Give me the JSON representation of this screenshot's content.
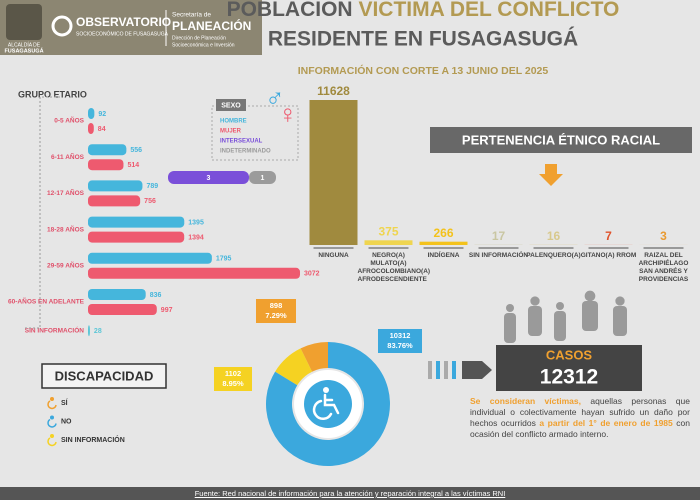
{
  "header": {
    "logo_top": "ALCALDÍA DE",
    "logo_bottom": "FUSAGASUGÁ",
    "observatorio": "OBSERVATORIO",
    "observatorio_sub": "SOCIOECONÓMICO DE FUSAGASUGÁ",
    "secretaria": "Secretaría de",
    "planeacion": "PLANEACIÓN",
    "direccion_1": "Dirección de Planeación",
    "direccion_2": "Socioeconómica e Inversión",
    "title_a": "POBLACIÓN ",
    "title_b": "VÍCTIMA DEL CONFLICTO",
    "title_line2": "RESIDENTE EN FUSAGASUGÁ",
    "subtitle": "INFORMACIÓN CON CORTE A 13 JUNIO DEL 2025"
  },
  "chart_data": [
    {
      "type": "hbar",
      "title": "GRUPO ETARIO",
      "categories": [
        "0-5 AÑOS",
        "6-11 AÑOS",
        "12-17 AÑOS",
        "18-28 AÑOS",
        "29-59 AÑOS",
        "60-AÑOS EN ADELANTE",
        "SIN INFORMACIÓN"
      ],
      "series": [
        {
          "name": "HOMBRE",
          "color": "#45b6dc",
          "values": [
            92,
            556,
            789,
            1395,
            1795,
            836,
            null
          ]
        },
        {
          "name": "MUJER",
          "color": "#ee5a6f",
          "values": [
            84,
            514,
            756,
            1394,
            3072,
            997,
            null
          ]
        },
        {
          "color": "#5cc6d6",
          "values": [
            null,
            null,
            null,
            null,
            null,
            null,
            28
          ]
        }
      ]
    },
    {
      "type": "stacked_bar",
      "title": "SEXO",
      "series": [
        {
          "name": "INTERSEXUAL",
          "color": "#7a4fd9",
          "values": [
            3
          ]
        },
        {
          "name": "INDETERMINADO",
          "color": "#9b9b9b",
          "values": [
            1
          ]
        }
      ]
    },
    {
      "type": "bar",
      "title": "PERTENENCIA ÉTNICO RACIAL",
      "categories": [
        "NINGUNA",
        "NEGRO(A) MULATO(A) AFROCOLOMBIANO(A) AFRODESCENDIENTE",
        "INDÍGENA",
        "SIN INFORMACIÓN",
        "PALENQUERO(A)",
        "GITANO(A) RROM",
        "RAIZAL DEL ARCHIPIÉLAGO SAN ANDRÉS Y PROVIDENCIAS"
      ],
      "values": [
        11628,
        375,
        266,
        17,
        16,
        7,
        3
      ],
      "colors": [
        "#a08a3e",
        "#efd550",
        "#f3c21c",
        "#c9c6a2",
        "#d8c98d",
        "#e0522b",
        "#e99a31"
      ]
    },
    {
      "type": "donut",
      "title": "DISCAPACIDAD",
      "categories": [
        "SÍ",
        "NO",
        "SIN INFORMACIÓN"
      ],
      "values": [
        898,
        10312,
        1102
      ],
      "percentage_labels": [
        "7.29%",
        "83.76%",
        "8.95%"
      ],
      "colors": [
        "#f0a02f",
        "#3ba8dd",
        "#f5d222"
      ]
    }
  ],
  "casos": {
    "label": "CASOS",
    "value": 12312
  },
  "definition": [
    "Se consideran víctimas,",
    " aquellas personas que individual o colectivamente hayan sufrido un daño por hechos ocurridos ",
    "a partir del 1° de enero de 1985",
    " con ocasión del conflicto armado interno."
  ],
  "source": "Fuente: Red nacional de información para la atención y reparación integral a las víctimas RNI"
}
